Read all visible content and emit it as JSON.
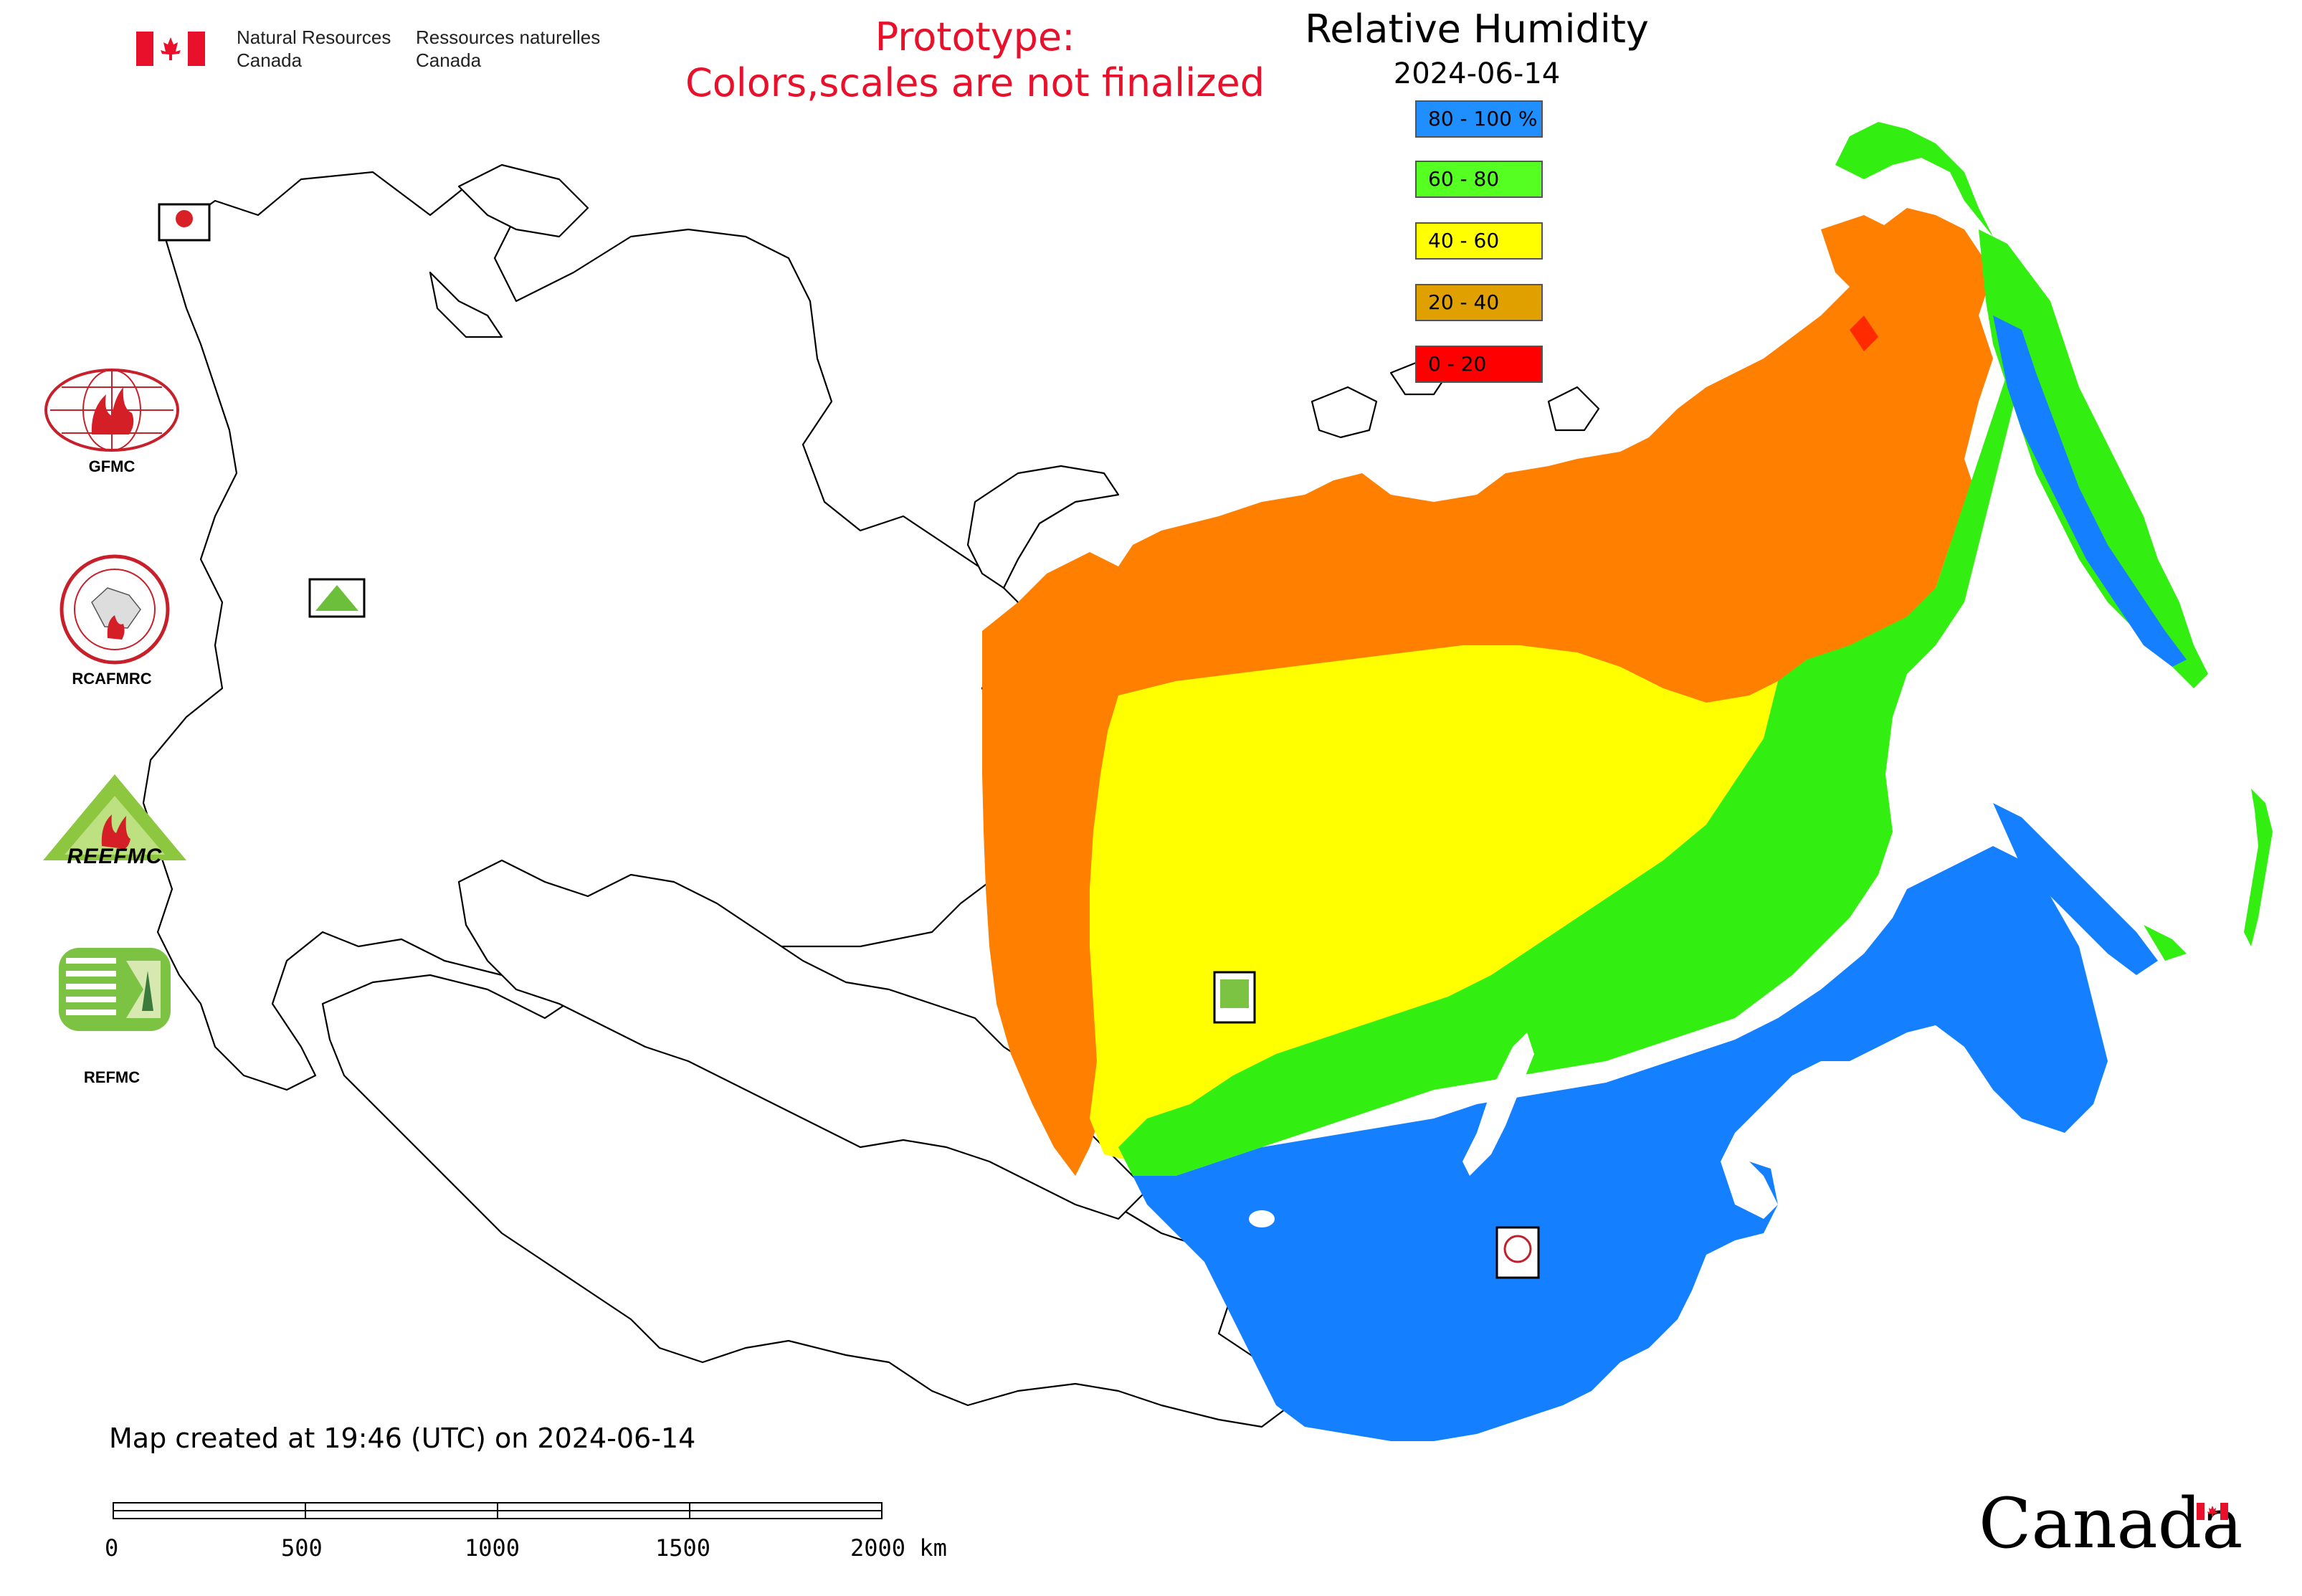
{
  "header": {
    "department_en": [
      "Natural Resources",
      "Canada"
    ],
    "department_fr": [
      "Ressources naturelles",
      "Canada"
    ],
    "prototype_notice": [
      "Prototype:",
      "Colors,scales are not finalized"
    ]
  },
  "map": {
    "title": "Relative Humidity",
    "date": "2024-06-14",
    "legend": [
      {
        "label": "80 - 100 %",
        "color": "#1f8fff"
      },
      {
        "label": "60 - 80",
        "color": "#55ff22"
      },
      {
        "label": "40 - 60",
        "color": "#ffff00"
      },
      {
        "label": "20 - 40",
        "color": "#e0a000"
      },
      {
        "label": "0 - 20",
        "color": "#ff0000"
      }
    ],
    "region_colors": {
      "dry_20_40": "#ff8000",
      "mid_40_60": "#ffff00",
      "wet_60_80": "#33ee11",
      "humid_80_100": "#1580ff"
    },
    "map_markers": [
      "GFMC",
      "REEFMC",
      "REFMC",
      "RCAFMRC"
    ]
  },
  "logos": [
    {
      "caption": "GFMC"
    },
    {
      "caption": "RCAFMRC"
    },
    {
      "caption": "REEFMC",
      "inner_text": "REEFMC"
    },
    {
      "caption": "REFMC"
    }
  ],
  "footer": {
    "created_note": "Map created at 19:46 (UTC) on 2024-06-14",
    "scale_labels": [
      "0",
      "500",
      "1000",
      "1500",
      "2000 km"
    ],
    "wordmark": "Canada"
  }
}
